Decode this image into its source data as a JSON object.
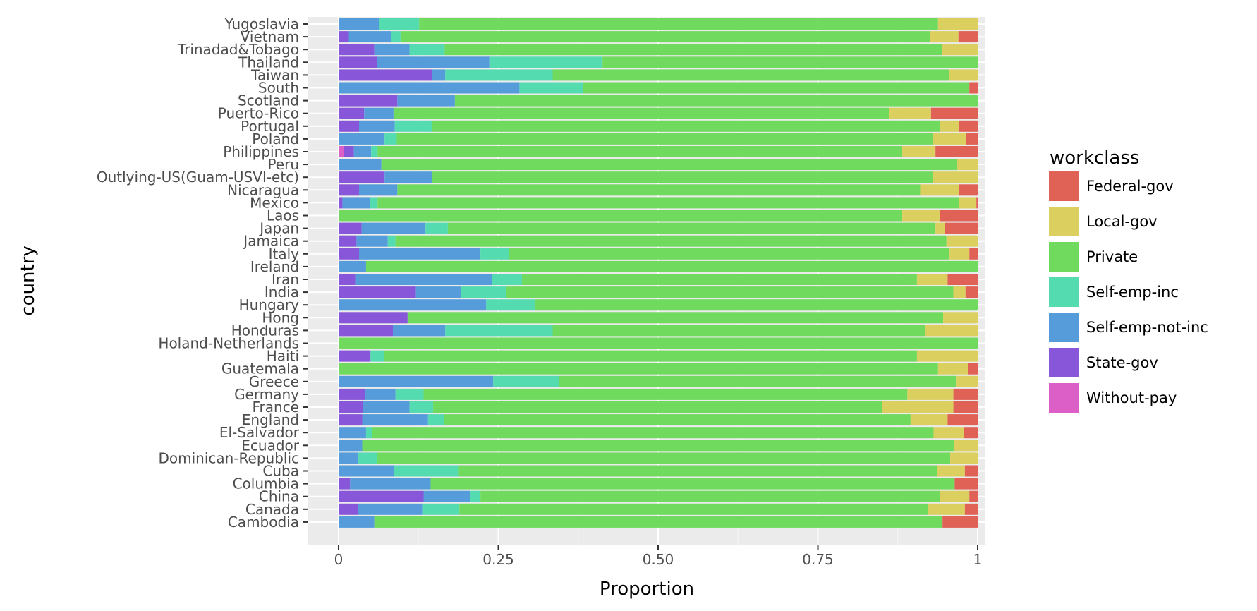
{
  "chart_data": {
    "type": "bar",
    "orientation": "horizontal",
    "stacked": "fill",
    "xlabel": "Proportion",
    "ylabel": "country",
    "xlim": [
      0,
      1
    ],
    "xticks": [
      0,
      0.25,
      0.5,
      0.75,
      1
    ],
    "xtick_labels": [
      "0",
      "0.25",
      "0.50",
      "0.75",
      "1"
    ],
    "grid": true,
    "legend": {
      "title": "workclass",
      "position": "right"
    },
    "series": [
      {
        "name": "Without-pay",
        "color": "#db5fc6"
      },
      {
        "name": "State-gov",
        "color": "#8856d9"
      },
      {
        "name": "Self-emp-not-inc",
        "color": "#569cdb"
      },
      {
        "name": "Self-emp-inc",
        "color": "#55dbb0"
      },
      {
        "name": "Private",
        "color": "#6fda5e"
      },
      {
        "name": "Local-gov",
        "color": "#dbcf5f"
      },
      {
        "name": "Federal-gov",
        "color": "#e06156"
      }
    ],
    "legend_order": [
      "Federal-gov",
      "Local-gov",
      "Private",
      "Self-emp-inc",
      "Self-emp-not-inc",
      "State-gov",
      "Without-pay"
    ],
    "categories": [
      "Cambodia",
      "Canada",
      "China",
      "Columbia",
      "Cuba",
      "Dominican-Republic",
      "Ecuador",
      "El-Salvador",
      "England",
      "France",
      "Germany",
      "Greece",
      "Guatemala",
      "Haiti",
      "Holand-Netherlands",
      "Honduras",
      "Hong",
      "Hungary",
      "India",
      "Iran",
      "Ireland",
      "Italy",
      "Jamaica",
      "Japan",
      "Laos",
      "Mexico",
      "Nicaragua",
      "Outlying-US(Guam-USVI-etc)",
      "Peru",
      "Philippines",
      "Poland",
      "Portugal",
      "Puerto-Rico",
      "Scotland",
      "South",
      "Taiwan",
      "Thailand",
      "Trinadad&Tobago",
      "Vietnam",
      "Yugoslavia"
    ],
    "rows": [
      {
        "country": "Cambodia",
        "Without-pay": 0,
        "State-gov": 0,
        "Self-emp-not-inc": 0.056,
        "Self-emp-inc": 0,
        "Private": 0.889,
        "Local-gov": 0,
        "Federal-gov": 0.055
      },
      {
        "country": "Canada",
        "Without-pay": 0,
        "State-gov": 0.03,
        "Self-emp-not-inc": 0.101,
        "Self-emp-inc": 0.058,
        "Private": 0.733,
        "Local-gov": 0.058,
        "Federal-gov": 0.02
      },
      {
        "country": "China",
        "Without-pay": 0,
        "State-gov": 0.133,
        "Self-emp-not-inc": 0.073,
        "Self-emp-inc": 0.016,
        "Private": 0.719,
        "Local-gov": 0.046,
        "Federal-gov": 0.013
      },
      {
        "country": "Columbia",
        "Without-pay": 0,
        "State-gov": 0.018,
        "Self-emp-not-inc": 0.126,
        "Self-emp-inc": 0,
        "Private": 0.82,
        "Local-gov": 0,
        "Federal-gov": 0.036
      },
      {
        "country": "Cuba",
        "Without-pay": 0,
        "State-gov": 0,
        "Self-emp-not-inc": 0.087,
        "Self-emp-inc": 0.1,
        "Private": 0.75,
        "Local-gov": 0.043,
        "Federal-gov": 0.02
      },
      {
        "country": "Dominican-Republic",
        "Without-pay": 0,
        "State-gov": 0,
        "Self-emp-not-inc": 0.031,
        "Self-emp-inc": 0.029,
        "Private": 0.897,
        "Local-gov": 0.043,
        "Federal-gov": 0
      },
      {
        "country": "Ecuador",
        "Without-pay": 0,
        "State-gov": 0,
        "Self-emp-not-inc": 0.037,
        "Self-emp-inc": 0,
        "Private": 0.926,
        "Local-gov": 0.037,
        "Federal-gov": 0
      },
      {
        "country": "El-Salvador",
        "Without-pay": 0,
        "State-gov": 0,
        "Self-emp-not-inc": 0.043,
        "Self-emp-inc": 0.01,
        "Private": 0.878,
        "Local-gov": 0.048,
        "Federal-gov": 0.021
      },
      {
        "country": "England",
        "Without-pay": 0,
        "State-gov": 0.037,
        "Self-emp-not-inc": 0.103,
        "Self-emp-inc": 0.025,
        "Private": 0.73,
        "Local-gov": 0.058,
        "Federal-gov": 0.047
      },
      {
        "country": "France",
        "Without-pay": 0,
        "State-gov": 0.038,
        "Self-emp-not-inc": 0.073,
        "Self-emp-inc": 0.037,
        "Private": 0.703,
        "Local-gov": 0.111,
        "Federal-gov": 0.038
      },
      {
        "country": "Germany",
        "Without-pay": 0,
        "State-gov": 0.041,
        "Self-emp-not-inc": 0.048,
        "Self-emp-inc": 0.044,
        "Private": 0.757,
        "Local-gov": 0.072,
        "Federal-gov": 0.038
      },
      {
        "country": "Greece",
        "Without-pay": 0,
        "State-gov": 0,
        "Self-emp-not-inc": 0.242,
        "Self-emp-inc": 0.103,
        "Private": 0.621,
        "Local-gov": 0.034,
        "Federal-gov": 0
      },
      {
        "country": "Guatemala",
        "Without-pay": 0,
        "State-gov": 0,
        "Self-emp-not-inc": 0,
        "Self-emp-inc": 0,
        "Private": 0.938,
        "Local-gov": 0.047,
        "Federal-gov": 0.015
      },
      {
        "country": "Haiti",
        "Without-pay": 0,
        "State-gov": 0.05,
        "Self-emp-not-inc": 0,
        "Self-emp-inc": 0.021,
        "Private": 0.834,
        "Local-gov": 0.095,
        "Federal-gov": 0
      },
      {
        "country": "Holand-Netherlands",
        "Without-pay": 0,
        "State-gov": 0,
        "Self-emp-not-inc": 0,
        "Self-emp-inc": 0,
        "Private": 1,
        "Local-gov": 0,
        "Federal-gov": 0
      },
      {
        "country": "Honduras",
        "Without-pay": 0,
        "State-gov": 0.085,
        "Self-emp-not-inc": 0.082,
        "Self-emp-inc": 0.168,
        "Private": 0.583,
        "Local-gov": 0.082,
        "Federal-gov": 0
      },
      {
        "country": "Hong",
        "Without-pay": 0,
        "State-gov": 0.108,
        "Self-emp-not-inc": 0,
        "Self-emp-inc": 0,
        "Private": 0.838,
        "Local-gov": 0.054,
        "Federal-gov": 0
      },
      {
        "country": "Hungary",
        "Without-pay": 0,
        "State-gov": 0,
        "Self-emp-not-inc": 0.231,
        "Self-emp-inc": 0.077,
        "Private": 0.692,
        "Local-gov": 0,
        "Federal-gov": 0
      },
      {
        "country": "India",
        "Without-pay": 0,
        "State-gov": 0.121,
        "Self-emp-not-inc": 0.071,
        "Self-emp-inc": 0.07,
        "Private": 0.7,
        "Local-gov": 0.019,
        "Federal-gov": 0.019
      },
      {
        "country": "Iran",
        "Without-pay": 0,
        "State-gov": 0.026,
        "Self-emp-not-inc": 0.214,
        "Self-emp-inc": 0.047,
        "Private": 0.618,
        "Local-gov": 0.048,
        "Federal-gov": 0.047
      },
      {
        "country": "Ireland",
        "Without-pay": 0,
        "State-gov": 0,
        "Self-emp-not-inc": 0.043,
        "Self-emp-inc": 0,
        "Private": 0.957,
        "Local-gov": 0,
        "Federal-gov": 0
      },
      {
        "country": "Italy",
        "Without-pay": 0,
        "State-gov": 0.032,
        "Self-emp-not-inc": 0.19,
        "Self-emp-inc": 0.044,
        "Private": 0.69,
        "Local-gov": 0.031,
        "Federal-gov": 0.013
      },
      {
        "country": "Jamaica",
        "Without-pay": 0,
        "State-gov": 0.028,
        "Self-emp-not-inc": 0.049,
        "Self-emp-inc": 0.012,
        "Private": 0.862,
        "Local-gov": 0.049,
        "Federal-gov": 0
      },
      {
        "country": "Japan",
        "Without-pay": 0,
        "State-gov": 0.036,
        "Self-emp-not-inc": 0.1,
        "Self-emp-inc": 0.035,
        "Private": 0.763,
        "Local-gov": 0.015,
        "Federal-gov": 0.051
      },
      {
        "country": "Laos",
        "Without-pay": 0,
        "State-gov": 0,
        "Self-emp-not-inc": 0,
        "Self-emp-inc": 0,
        "Private": 0.882,
        "Local-gov": 0.059,
        "Federal-gov": 0.059
      },
      {
        "country": "Mexico",
        "Without-pay": 0,
        "State-gov": 0.006,
        "Self-emp-not-inc": 0.043,
        "Self-emp-inc": 0.012,
        "Private": 0.91,
        "Local-gov": 0.027,
        "Federal-gov": 0.002
      },
      {
        "country": "Nicaragua",
        "Without-pay": 0,
        "State-gov": 0.032,
        "Self-emp-not-inc": 0.06,
        "Self-emp-inc": 0,
        "Private": 0.818,
        "Local-gov": 0.061,
        "Federal-gov": 0.029
      },
      {
        "country": "Outlying-US(Guam-USVI-etc)",
        "Without-pay": 0,
        "State-gov": 0.072,
        "Self-emp-not-inc": 0.074,
        "Self-emp-inc": 0,
        "Private": 0.784,
        "Local-gov": 0.07,
        "Federal-gov": 0
      },
      {
        "country": "Peru",
        "Without-pay": 0,
        "State-gov": 0,
        "Self-emp-not-inc": 0.067,
        "Self-emp-inc": 0,
        "Private": 0.9,
        "Local-gov": 0.033,
        "Federal-gov": 0
      },
      {
        "country": "Philippines",
        "Without-pay": 0.008,
        "State-gov": 0.016,
        "Self-emp-not-inc": 0.027,
        "Self-emp-inc": 0.01,
        "Private": 0.821,
        "Local-gov": 0.052,
        "Federal-gov": 0.066
      },
      {
        "country": "Poland",
        "Without-pay": 0,
        "State-gov": 0,
        "Self-emp-not-inc": 0.072,
        "Self-emp-inc": 0.019,
        "Private": 0.839,
        "Local-gov": 0.052,
        "Federal-gov": 0.018
      },
      {
        "country": "Portugal",
        "Without-pay": 0,
        "State-gov": 0.032,
        "Self-emp-not-inc": 0.056,
        "Self-emp-inc": 0.058,
        "Private": 0.795,
        "Local-gov": 0.03,
        "Federal-gov": 0.029
      },
      {
        "country": "Puerto-Rico",
        "Without-pay": 0,
        "State-gov": 0.04,
        "Self-emp-not-inc": 0.046,
        "Self-emp-inc": 0,
        "Private": 0.776,
        "Local-gov": 0.065,
        "Federal-gov": 0.073
      },
      {
        "country": "Scotland",
        "Without-pay": 0,
        "State-gov": 0.092,
        "Self-emp-not-inc": 0.09,
        "Self-emp-inc": 0,
        "Private": 0.818,
        "Local-gov": 0,
        "Federal-gov": 0
      },
      {
        "country": "South",
        "Without-pay": 0,
        "State-gov": 0,
        "Self-emp-not-inc": 0.283,
        "Self-emp-inc": 0.1,
        "Private": 0.604,
        "Local-gov": 0,
        "Federal-gov": 0.013
      },
      {
        "country": "Taiwan",
        "Without-pay": 0,
        "State-gov": 0.146,
        "Self-emp-not-inc": 0.021,
        "Self-emp-inc": 0.168,
        "Private": 0.62,
        "Local-gov": 0.045,
        "Federal-gov": 0
      },
      {
        "country": "Thailand",
        "Without-pay": 0,
        "State-gov": 0.06,
        "Self-emp-not-inc": 0.176,
        "Self-emp-inc": 0.177,
        "Private": 0.587,
        "Local-gov": 0,
        "Federal-gov": 0
      },
      {
        "country": "Trinadad&Tobago",
        "Without-pay": 0,
        "State-gov": 0.056,
        "Self-emp-not-inc": 0.055,
        "Self-emp-inc": 0.055,
        "Private": 0.778,
        "Local-gov": 0.056,
        "Federal-gov": 0
      },
      {
        "country": "Vietnam",
        "Without-pay": 0,
        "State-gov": 0.016,
        "Self-emp-not-inc": 0.066,
        "Self-emp-inc": 0.015,
        "Private": 0.828,
        "Local-gov": 0.045,
        "Federal-gov": 0.03
      },
      {
        "country": "Yugoslavia",
        "Without-pay": 0,
        "State-gov": 0,
        "Self-emp-not-inc": 0.063,
        "Self-emp-inc": 0.063,
        "Private": 0.812,
        "Local-gov": 0.062,
        "Federal-gov": 0
      }
    ]
  }
}
